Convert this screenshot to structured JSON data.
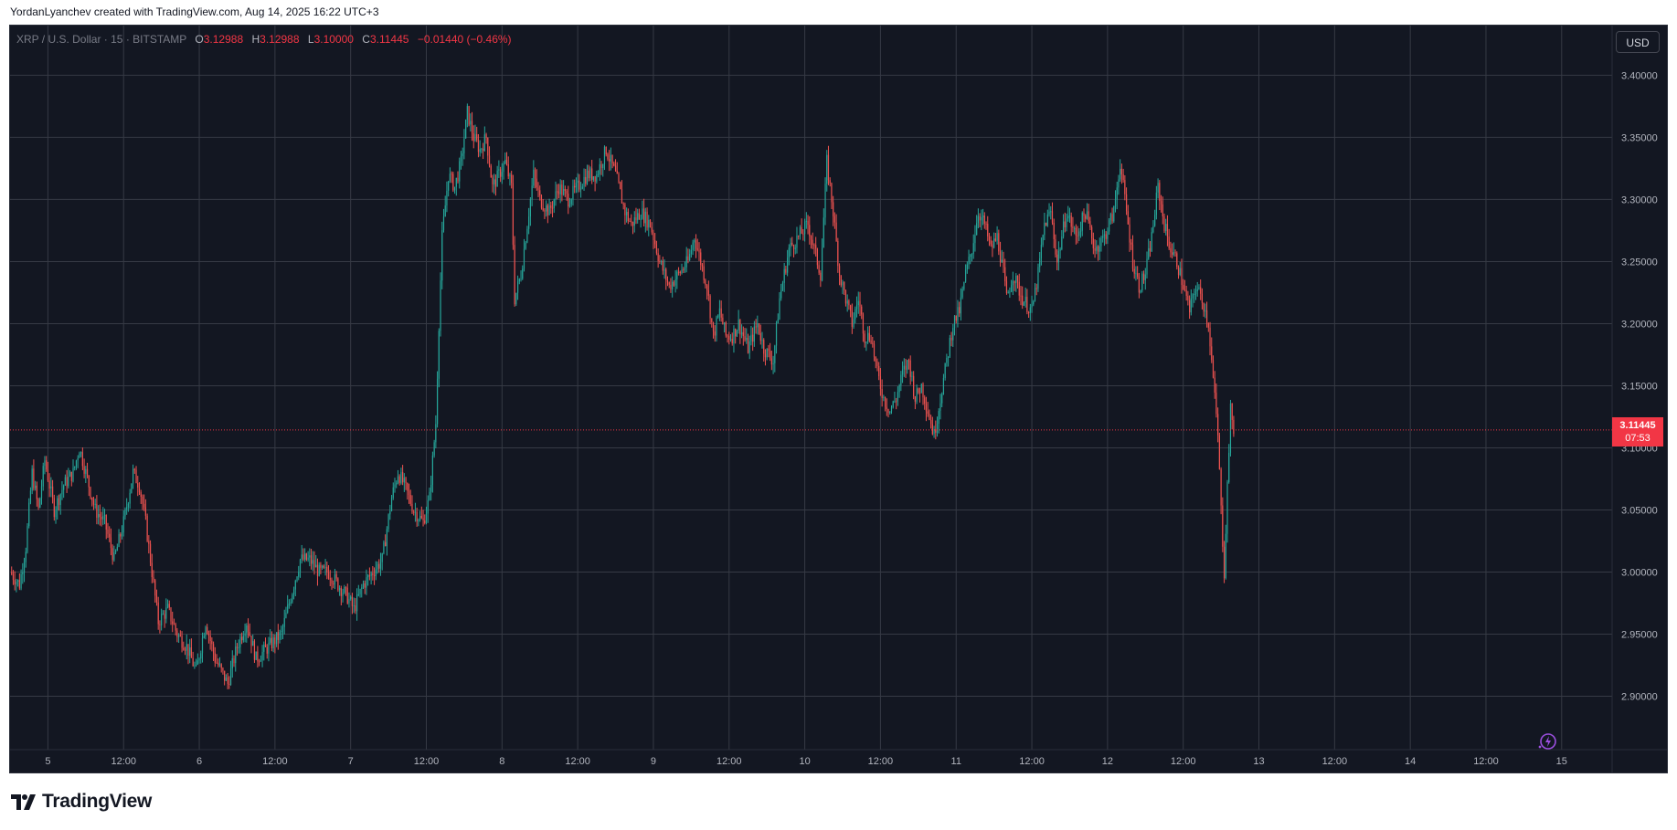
{
  "header": {
    "credit": "YordanLyanchev created with TradingView.com, Aug 14, 2025 16:22 UTC+3"
  },
  "legend": {
    "symbol": "XRP / U.S. Dollar · 15 · BITSTAMP",
    "o_label": "O",
    "o_value": "3.12988",
    "h_label": "H",
    "h_value": "3.12988",
    "l_label": "L",
    "l_value": "3.10000",
    "c_label": "C",
    "c_value": "3.11445",
    "change": "−0.01440 (−0.46%)"
  },
  "currency_button": "USD",
  "price_tag": {
    "price": "3.11445",
    "countdown": "07:53"
  },
  "brand": {
    "name": "TradingView"
  },
  "colors": {
    "background": "#131722",
    "up": "#26a69a",
    "down": "#ef5350",
    "grid": "#363a45",
    "last_price": "#f23645"
  },
  "icons": {
    "replay": "lightning-replay-icon",
    "logo": "tradingview-logo-icon"
  },
  "chart_data": {
    "type": "candlestick",
    "title": "XRP / U.S. Dollar · 15 · BITSTAMP",
    "interval": "15",
    "currency": "USD",
    "last_price": 3.11445,
    "y_ticks": [
      "3.40000",
      "3.35000",
      "3.30000",
      "3.25000",
      "3.20000",
      "3.15000",
      "3.10000",
      "3.05000",
      "3.00000",
      "2.95000",
      "2.90000"
    ],
    "ylim": [
      2.857,
      3.44
    ],
    "x_ticks": [
      {
        "label": "5",
        "t": 24
      },
      {
        "label": "12:00",
        "t": 36
      },
      {
        "label": "6",
        "t": 48
      },
      {
        "label": "12:00",
        "t": 60
      },
      {
        "label": "7",
        "t": 72
      },
      {
        "label": "12:00",
        "t": 84
      },
      {
        "label": "8",
        "t": 96
      },
      {
        "label": "12:00",
        "t": 108
      },
      {
        "label": "9",
        "t": 120
      },
      {
        "label": "12:00",
        "t": 132
      },
      {
        "label": "10",
        "t": 144
      },
      {
        "label": "12:00",
        "t": 156
      },
      {
        "label": "11",
        "t": 168
      },
      {
        "label": "12:00",
        "t": 180
      },
      {
        "label": "12",
        "t": 192
      },
      {
        "label": "12:00",
        "t": 204
      },
      {
        "label": "13",
        "t": 216
      },
      {
        "label": "12:00",
        "t": 228
      },
      {
        "label": "14",
        "t": 240
      },
      {
        "label": "12:00",
        "t": 252
      },
      {
        "label": "15",
        "t": 264
      }
    ],
    "xlim": [
      18,
      272
    ],
    "t_unit": "hours since Aug 4 00:00 UTC+3",
    "price_path": [
      [
        18.0,
        3.0
      ],
      [
        19.5,
        2.99
      ],
      [
        20.5,
        3.02
      ],
      [
        21.5,
        3.08
      ],
      [
        22.5,
        3.05
      ],
      [
        23.5,
        3.09
      ],
      [
        25.0,
        3.05
      ],
      [
        26.5,
        3.07
      ],
      [
        28.0,
        3.08
      ],
      [
        29.0,
        3.1
      ],
      [
        30.5,
        3.07
      ],
      [
        31.5,
        3.05
      ],
      [
        33.0,
        3.04
      ],
      [
        34.5,
        3.01
      ],
      [
        36.0,
        3.04
      ],
      [
        37.5,
        3.08
      ],
      [
        38.5,
        3.07
      ],
      [
        39.5,
        3.04
      ],
      [
        40.5,
        3.0
      ],
      [
        41.5,
        2.96
      ],
      [
        43.0,
        2.97
      ],
      [
        44.5,
        2.95
      ],
      [
        46.0,
        2.94
      ],
      [
        47.5,
        2.92
      ],
      [
        49.0,
        2.96
      ],
      [
        50.5,
        2.93
      ],
      [
        52.5,
        2.91
      ],
      [
        54.0,
        2.94
      ],
      [
        55.5,
        2.96
      ],
      [
        57.0,
        2.93
      ],
      [
        59.0,
        2.94
      ],
      [
        61.0,
        2.95
      ],
      [
        62.5,
        2.98
      ],
      [
        64.0,
        3.01
      ],
      [
        65.5,
        3.01
      ],
      [
        67.0,
        3.0
      ],
      [
        68.5,
        3.0
      ],
      [
        70.0,
        2.99
      ],
      [
        71.5,
        2.98
      ],
      [
        72.5,
        2.97
      ],
      [
        74.0,
        2.99
      ],
      [
        75.5,
        3.0
      ],
      [
        77.0,
        3.01
      ],
      [
        78.5,
        3.06
      ],
      [
        79.5,
        3.08
      ],
      [
        80.5,
        3.07
      ],
      [
        82.0,
        3.05
      ],
      [
        83.5,
        3.04
      ],
      [
        84.5,
        3.06
      ],
      [
        85.5,
        3.12
      ],
      [
        86.0,
        3.2
      ],
      [
        86.5,
        3.27
      ],
      [
        87.5,
        3.32
      ],
      [
        88.5,
        3.31
      ],
      [
        89.5,
        3.33
      ],
      [
        90.5,
        3.37
      ],
      [
        91.5,
        3.35
      ],
      [
        92.5,
        3.34
      ],
      [
        93.5,
        3.35
      ],
      [
        94.5,
        3.31
      ],
      [
        95.5,
        3.32
      ],
      [
        96.5,
        3.33
      ],
      [
        97.5,
        3.31
      ],
      [
        98.0,
        3.22
      ],
      [
        99.0,
        3.24
      ],
      [
        100.0,
        3.28
      ],
      [
        101.0,
        3.32
      ],
      [
        102.0,
        3.3
      ],
      [
        103.5,
        3.29
      ],
      [
        105.0,
        3.31
      ],
      [
        106.5,
        3.3
      ],
      [
        108.0,
        3.31
      ],
      [
        109.5,
        3.32
      ],
      [
        111.0,
        3.32
      ],
      [
        112.5,
        3.34
      ],
      [
        114.0,
        3.32
      ],
      [
        115.5,
        3.29
      ],
      [
        116.5,
        3.28
      ],
      [
        118.0,
        3.29
      ],
      [
        119.5,
        3.28
      ],
      [
        121.0,
        3.25
      ],
      [
        122.5,
        3.23
      ],
      [
        124.0,
        3.24
      ],
      [
        125.5,
        3.25
      ],
      [
        126.5,
        3.27
      ],
      [
        127.5,
        3.25
      ],
      [
        128.5,
        3.23
      ],
      [
        129.5,
        3.19
      ],
      [
        130.5,
        3.21
      ],
      [
        131.5,
        3.19
      ],
      [
        132.5,
        3.19
      ],
      [
        133.5,
        3.2
      ],
      [
        135.0,
        3.18
      ],
      [
        136.5,
        3.2
      ],
      [
        137.5,
        3.18
      ],
      [
        139.0,
        3.17
      ],
      [
        140.0,
        3.22
      ],
      [
        141.5,
        3.26
      ],
      [
        143.0,
        3.27
      ],
      [
        144.5,
        3.28
      ],
      [
        145.5,
        3.26
      ],
      [
        146.5,
        3.24
      ],
      [
        147.5,
        3.33
      ],
      [
        148.5,
        3.29
      ],
      [
        149.5,
        3.24
      ],
      [
        150.5,
        3.22
      ],
      [
        151.5,
        3.2
      ],
      [
        152.5,
        3.22
      ],
      [
        153.5,
        3.19
      ],
      [
        154.5,
        3.19
      ],
      [
        155.5,
        3.16
      ],
      [
        156.5,
        3.14
      ],
      [
        157.5,
        3.13
      ],
      [
        158.5,
        3.14
      ],
      [
        159.5,
        3.16
      ],
      [
        160.5,
        3.17
      ],
      [
        161.5,
        3.14
      ],
      [
        162.5,
        3.15
      ],
      [
        163.5,
        3.13
      ],
      [
        164.5,
        3.11
      ],
      [
        165.5,
        3.14
      ],
      [
        166.5,
        3.17
      ],
      [
        167.5,
        3.2
      ],
      [
        168.5,
        3.21
      ],
      [
        169.5,
        3.24
      ],
      [
        170.5,
        3.26
      ],
      [
        171.5,
        3.29
      ],
      [
        172.5,
        3.28
      ],
      [
        173.5,
        3.26
      ],
      [
        174.5,
        3.27
      ],
      [
        175.5,
        3.24
      ],
      [
        176.0,
        3.22
      ],
      [
        177.0,
        3.24
      ],
      [
        178.5,
        3.22
      ],
      [
        180.0,
        3.21
      ],
      [
        181.0,
        3.24
      ],
      [
        182.0,
        3.28
      ],
      [
        183.0,
        3.29
      ],
      [
        184.0,
        3.25
      ],
      [
        185.5,
        3.29
      ],
      [
        187.0,
        3.27
      ],
      [
        188.5,
        3.29
      ],
      [
        190.0,
        3.26
      ],
      [
        191.5,
        3.27
      ],
      [
        193.0,
        3.29
      ],
      [
        194.0,
        3.33
      ],
      [
        195.0,
        3.29
      ],
      [
        196.0,
        3.25
      ],
      [
        197.0,
        3.23
      ],
      [
        198.0,
        3.24
      ],
      [
        199.0,
        3.27
      ],
      [
        200.0,
        3.31
      ],
      [
        201.0,
        3.28
      ],
      [
        202.0,
        3.26
      ],
      [
        203.0,
        3.25
      ],
      [
        204.0,
        3.23
      ],
      [
        205.0,
        3.21
      ],
      [
        206.0,
        3.23
      ],
      [
        207.0,
        3.22
      ],
      [
        208.0,
        3.2
      ],
      [
        209.0,
        3.14
      ],
      [
        209.5,
        3.11
      ],
      [
        210.0,
        3.05
      ],
      [
        210.5,
        3.0
      ],
      [
        211.0,
        3.07
      ],
      [
        211.5,
        3.13
      ],
      [
        212.0,
        3.11445
      ]
    ]
  }
}
